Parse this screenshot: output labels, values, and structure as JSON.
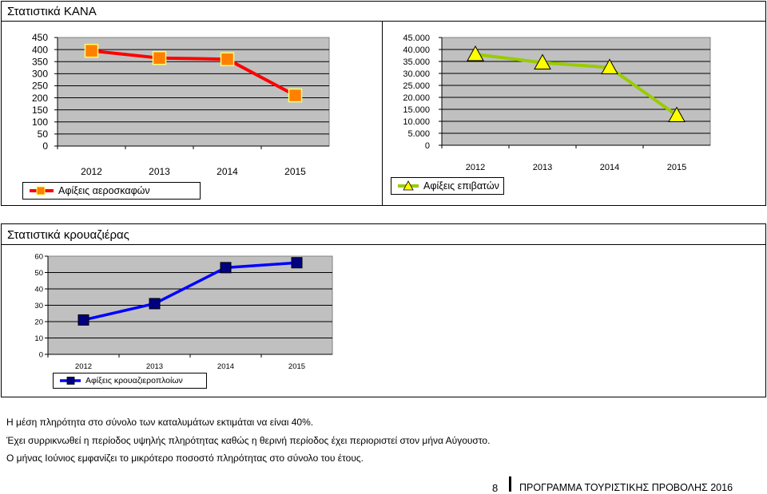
{
  "section1": {
    "title": "Στατιστικά ΚΑΝΑ"
  },
  "section2": {
    "title": "Στατιστικά κρουαζιέρας"
  },
  "chart_data": [
    {
      "type": "line",
      "x": [
        "2012",
        "2013",
        "2014",
        "2015"
      ],
      "y_ticks": [
        "450",
        "400",
        "350",
        "300",
        "250",
        "200",
        "150",
        "100",
        "50",
        "0"
      ],
      "ylim": [
        0,
        450
      ],
      "series": [
        {
          "name": "Αφίξεις αεροσκαφών",
          "values": [
            395,
            365,
            360,
            210
          ],
          "line_color": "#ff0000",
          "marker_color": "#ff8000",
          "marker": "square"
        }
      ],
      "grid": true,
      "plot_bg": "#c0c0c0"
    },
    {
      "type": "line",
      "x": [
        "2012",
        "2013",
        "2014",
        "2015"
      ],
      "y_ticks": [
        "45.000",
        "40.000",
        "35.000",
        "30.000",
        "25.000",
        "20.000",
        "15.000",
        "10.000",
        "5.000",
        "0"
      ],
      "ylim": [
        0,
        45000
      ],
      "series": [
        {
          "name": "Αφίξεις επιβατών",
          "values": [
            38000,
            34500,
            32500,
            12500
          ],
          "line_color": "#99cc00",
          "marker_color": "#ffff00",
          "marker": "triangle"
        }
      ],
      "grid": true,
      "plot_bg": "#c0c0c0"
    },
    {
      "type": "line",
      "x": [
        "2012",
        "2013",
        "2014",
        "2015"
      ],
      "y_ticks": [
        "60",
        "50",
        "40",
        "30",
        "20",
        "10",
        "0"
      ],
      "ylim": [
        0,
        60
      ],
      "series": [
        {
          "name": "Αφίξεις κρουαζιεροπλοίων",
          "values": [
            21,
            31,
            53,
            56
          ],
          "line_color": "#0000ff",
          "marker_color": "#000080",
          "marker": "square"
        }
      ],
      "grid": true,
      "plot_bg": "#c0c0c0"
    }
  ],
  "text": {
    "p1": "Η μέση πληρότητα στο σύνολο των καταλυμάτων εκτιμάται να είναι 40%.",
    "p2": "Έχει συρρικνωθεί η περίοδος υψηλής πληρότητας καθώς η θερινή περίοδος έχει περιοριστεί στον μήνα Αύγουστο.",
    "p3": "Ο μήνας Ιούνιος εμφανίζει το μικρότερο ποσοστό πληρότητας στο σύνολο του έτους."
  },
  "footer": {
    "page_number": "8",
    "program": "ΠΡΟΓΡΑΜΜΑ ΤΟΥΡΙΣΤΙΚΗΣ ΠΡΟΒΟΛΗΣ 2016"
  }
}
